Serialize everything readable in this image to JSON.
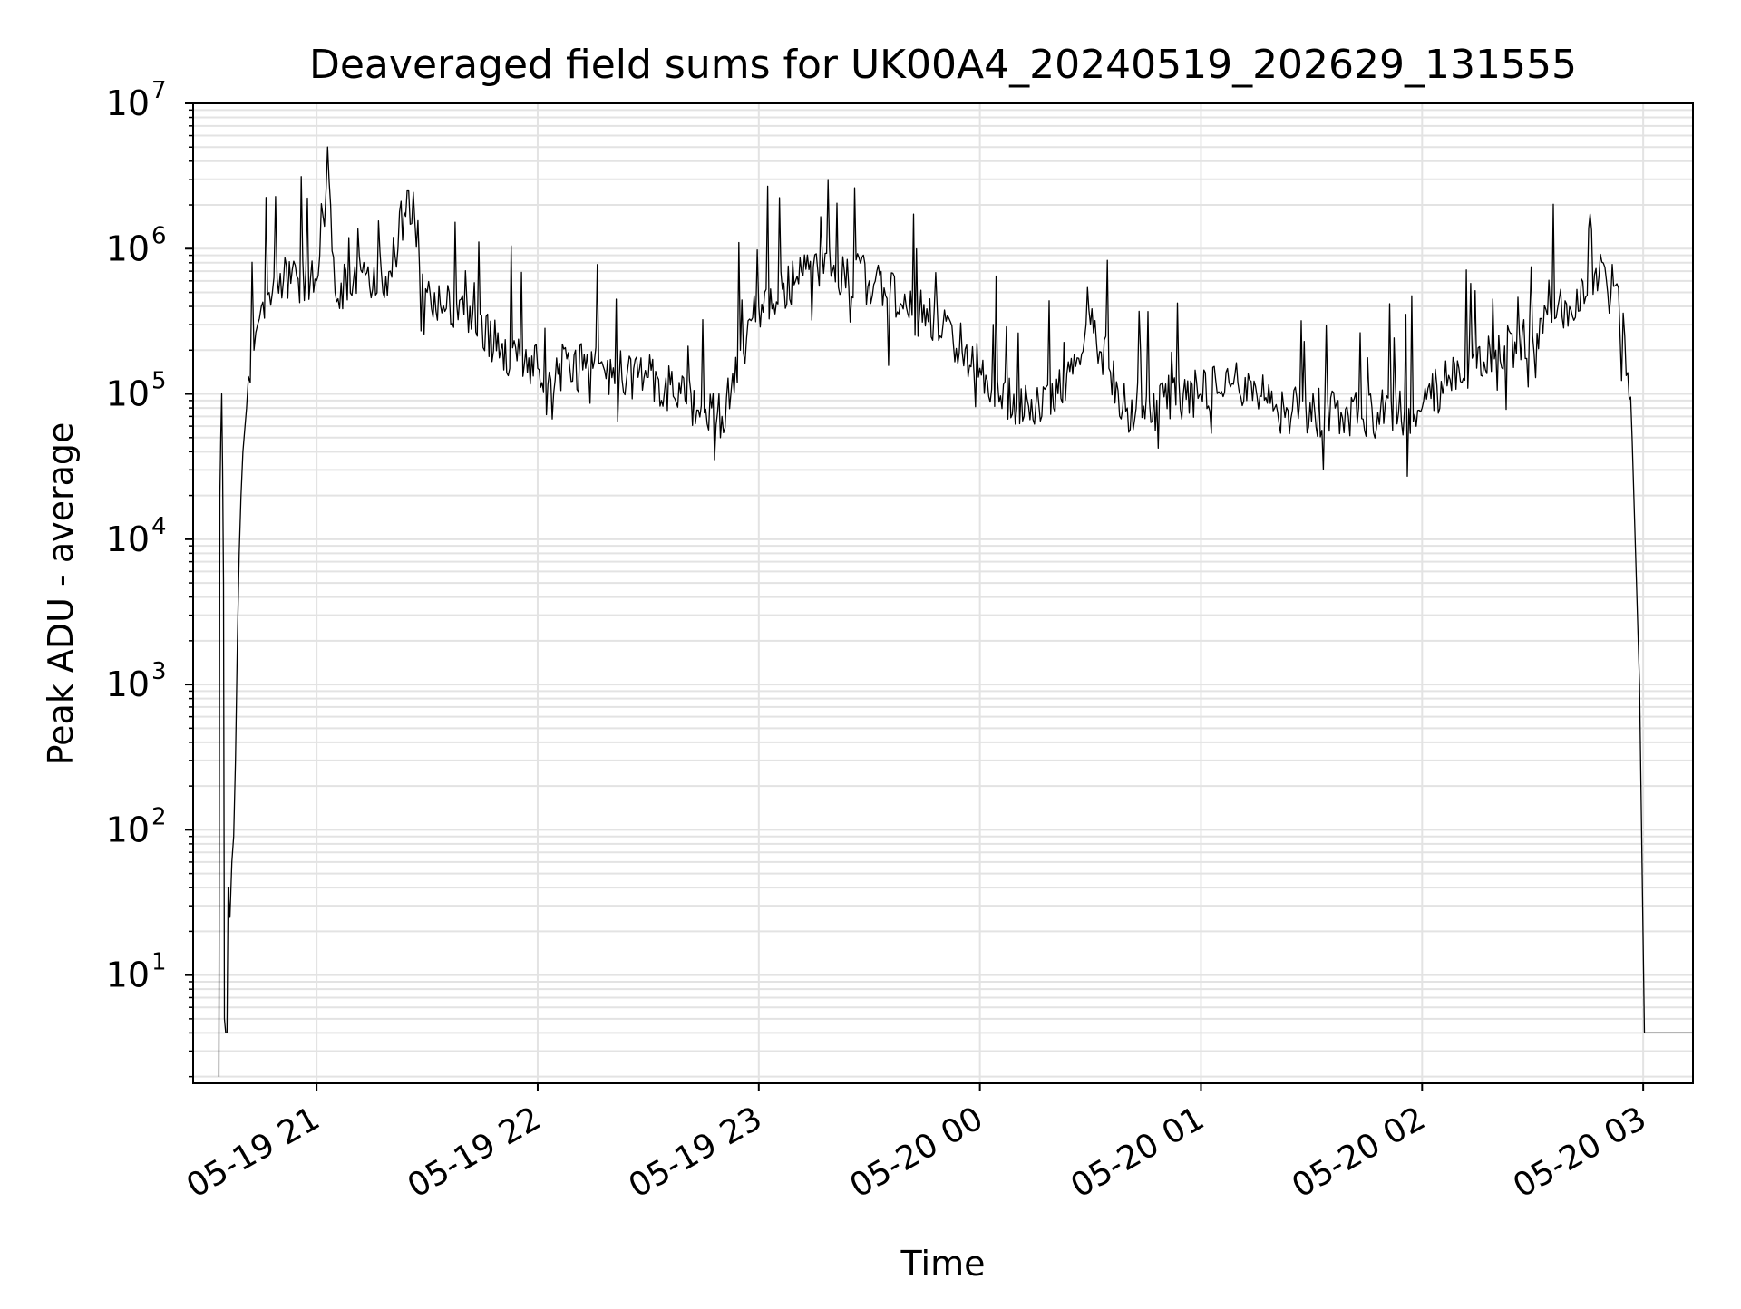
{
  "chart_data": {
    "type": "line",
    "title": "Deaveraged field sums for UK00A4_20240519_202629_131555",
    "xlabel": "Time",
    "ylabel": "Peak ADU - average",
    "yscale": "log",
    "ylim": [
      1.8,
      10000000
    ],
    "xlim": [
      "2024-05-19 20:26:30",
      "2024-05-20 03:13:30"
    ],
    "grid": "major and minor, light gray",
    "line_color": "#000000",
    "x_ticks": [
      {
        "t": "2024-05-19 21:00",
        "label": "05-19 21"
      },
      {
        "t": "2024-05-19 22:00",
        "label": "05-19 22"
      },
      {
        "t": "2024-05-19 23:00",
        "label": "05-19 23"
      },
      {
        "t": "2024-05-20 00:00",
        "label": "05-20 00"
      },
      {
        "t": "2024-05-20 01:00",
        "label": "05-20 01"
      },
      {
        "t": "2024-05-20 02:00",
        "label": "05-20 02"
      },
      {
        "t": "2024-05-20 03:00",
        "label": "05-20 03"
      }
    ],
    "y_ticks": [
      {
        "value": 10,
        "base": "10",
        "exp": "1"
      },
      {
        "value": 100,
        "base": "10",
        "exp": "2"
      },
      {
        "value": 1000,
        "base": "10",
        "exp": "3"
      },
      {
        "value": 10000,
        "base": "10",
        "exp": "4"
      },
      {
        "value": 100000,
        "base": "10",
        "exp": "5"
      },
      {
        "value": 1000000,
        "base": "10",
        "exp": "6"
      },
      {
        "value": 10000000,
        "base": "10",
        "exp": "7"
      }
    ],
    "series": [
      {
        "values": [
          [
            "2024-05-19 20:33:30",
            2
          ],
          [
            "2024-05-19 20:33:45",
            20000
          ],
          [
            "2024-05-19 20:34:00",
            50000
          ],
          [
            "2024-05-19 20:34:15",
            100000
          ],
          [
            "2024-05-19 20:34:30",
            30000
          ],
          [
            "2024-05-19 20:34:45",
            5000
          ],
          [
            "2024-05-19 20:35:00",
            5
          ],
          [
            "2024-05-19 20:35:20",
            4
          ],
          [
            "2024-05-19 20:35:40",
            4
          ],
          [
            "2024-05-19 20:36:00",
            40
          ],
          [
            "2024-05-19 20:36:30",
            25
          ],
          [
            "2024-05-19 20:37:00",
            60
          ],
          [
            "2024-05-19 20:37:30",
            90
          ],
          [
            "2024-05-19 20:38:00",
            300
          ],
          [
            "2024-05-19 20:38:30",
            2000
          ],
          [
            "2024-05-19 20:39:00",
            8000
          ],
          [
            "2024-05-19 20:39:30",
            20000
          ],
          [
            "2024-05-19 20:40:00",
            40000
          ],
          [
            "2024-05-19 20:41:00",
            80000
          ],
          [
            "2024-05-19 20:42:00",
            120000
          ],
          [
            "2024-05-19 20:43:00",
            200000
          ],
          [
            "2024-05-19 20:44:00",
            300000
          ],
          [
            "2024-05-19 20:45:00",
            400000
          ],
          [
            "2024-05-19 20:48:00",
            500000
          ],
          [
            "2024-05-19 20:51:00",
            600000
          ],
          [
            "2024-05-19 20:55:00",
            620000
          ],
          [
            "2024-05-19 21:00:00",
            600000
          ],
          [
            "2024-05-19 21:03:00",
            5000000
          ],
          [
            "2024-05-19 21:05:00",
            500000
          ],
          [
            "2024-05-19 21:10:00",
            600000
          ],
          [
            "2024-05-19 21:20:00",
            700000
          ],
          [
            "2024-05-19 21:25:00",
            2500000
          ],
          [
            "2024-05-19 21:30:00",
            500000
          ],
          [
            "2024-05-19 21:40:00",
            350000
          ],
          [
            "2024-05-19 21:50:00",
            200000
          ],
          [
            "2024-05-19 22:00:00",
            150000
          ],
          [
            "2024-05-19 22:15:00",
            150000
          ],
          [
            "2024-05-19 22:30:00",
            130000
          ],
          [
            "2024-05-19 22:40:00",
            90000
          ],
          [
            "2024-05-19 22:50:00",
            70000
          ],
          [
            "2024-05-19 22:55:00",
            200000
          ],
          [
            "2024-05-19 23:00:00",
            400000
          ],
          [
            "2024-05-19 23:10:00",
            600000
          ],
          [
            "2024-05-19 23:20:00",
            700000
          ],
          [
            "2024-05-19 23:30:00",
            600000
          ],
          [
            "2024-05-19 23:40:00",
            400000
          ],
          [
            "2024-05-19 23:50:00",
            300000
          ],
          [
            "2024-05-20 00:00:00",
            150000
          ],
          [
            "2024-05-20 00:10:00",
            80000
          ],
          [
            "2024-05-20 00:20:00",
            80000
          ],
          [
            "2024-05-20 00:30:00",
            300000
          ],
          [
            "2024-05-20 00:35:00",
            150000
          ],
          [
            "2024-05-20 00:40:00",
            80000
          ],
          [
            "2024-05-20 01:00:00",
            100000
          ],
          [
            "2024-05-20 01:10:00",
            120000
          ],
          [
            "2024-05-20 01:20:00",
            80000
          ],
          [
            "2024-05-20 01:40:00",
            70000
          ],
          [
            "2024-05-20 02:00:00",
            80000
          ],
          [
            "2024-05-20 02:10:00",
            150000
          ],
          [
            "2024-05-20 02:20:00",
            200000
          ],
          [
            "2024-05-20 02:30:00",
            250000
          ],
          [
            "2024-05-20 02:40:00",
            400000
          ],
          [
            "2024-05-20 02:48:00",
            650000
          ],
          [
            "2024-05-20 02:52:00",
            550000
          ],
          [
            "2024-05-20 02:55:00",
            250000
          ],
          [
            "2024-05-20 02:57:00",
            50000
          ],
          [
            "2024-05-20 02:59:00",
            1000
          ],
          [
            "2024-05-20 03:00:20",
            4
          ],
          [
            "2024-05-20 03:13:30",
            4
          ]
        ]
      }
    ]
  }
}
